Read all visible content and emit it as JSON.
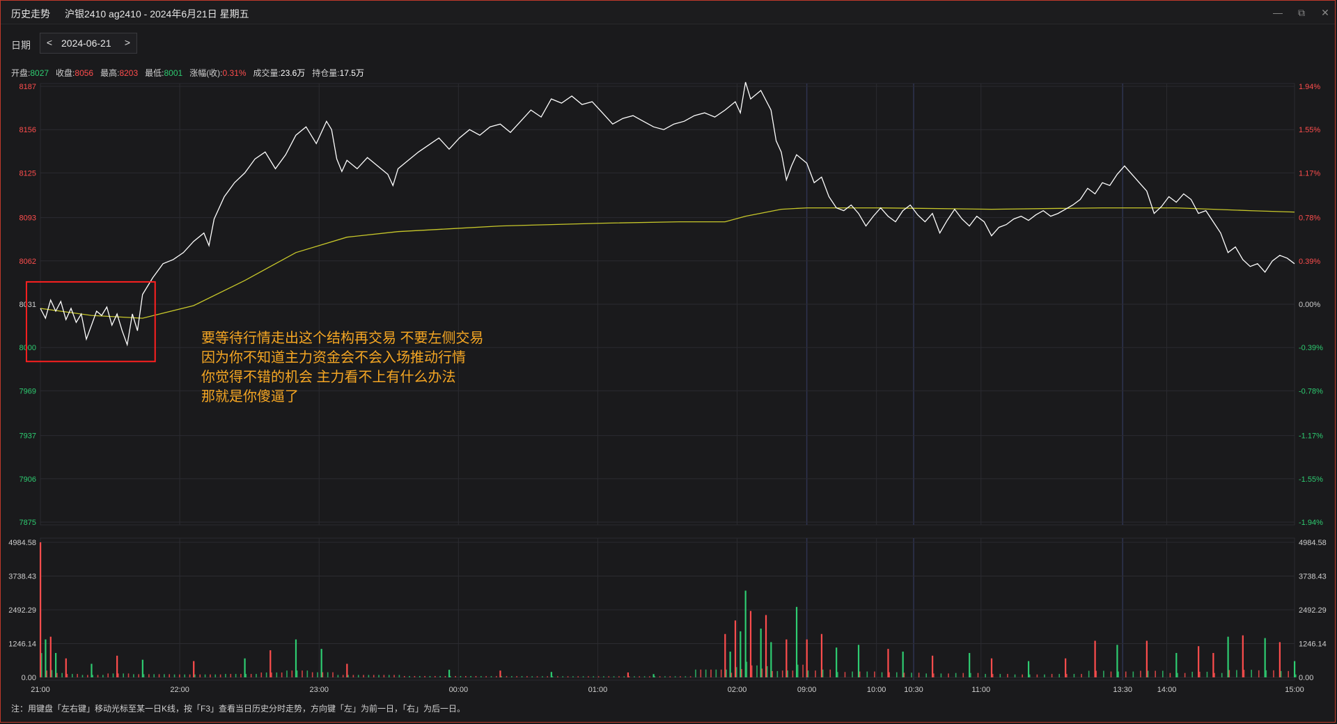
{
  "window": {
    "title": "历史走势",
    "subtitle": "沪银2410 ag2410 - 2024年6月21日 星期五",
    "controls": [
      "minimize-icon",
      "restore-icon",
      "close-icon"
    ]
  },
  "toolbar": {
    "date_label": "日期",
    "prev": "<",
    "date_value": "2024-06-21",
    "next": ">"
  },
  "info": {
    "open_label": "开盘:",
    "open": "8027",
    "close_label": "收盘:",
    "close": "8056",
    "high_label": "最高:",
    "high": "8203",
    "low_label": "最低:",
    "low": "8001",
    "change_label": "涨幅(收):",
    "change": "0.31%",
    "volume_label": "成交量:",
    "volume": "23.6万",
    "oi_label": "持仓量:",
    "oi": "17.5万"
  },
  "annotation": {
    "lines": [
      "要等待行情走出这个结构再交易 不要左侧交易",
      "因为你不知道主力资金会不会入场推动行情",
      "你觉得不错的机会 主力看不上有什么办法",
      "那就是你傻逼了"
    ],
    "color": "#f5a623",
    "box_color": "#ff2020"
  },
  "footer": "注：用键盘「左右键」移动光标至某一日K线，按「F3」查看当日历史分时走势，方向键「左」为前一日，「右」为后一日。",
  "colors": {
    "up": "#ff4d4d",
    "down": "#2ecc71",
    "price_line": "#ffffff",
    "avg_line": "#c8c82a",
    "grid": "#2b2b30",
    "session_line": "#2e3350"
  },
  "chart_data": [
    {
      "type": "line",
      "title": "",
      "y_left_ticks": [
        "8187",
        "8156",
        "8125",
        "8093",
        "8062",
        "8031",
        "8000",
        "7969",
        "7937",
        "7906",
        "7875"
      ],
      "y_right_ticks": [
        "1.94%",
        "1.55%",
        "1.17%",
        "0.78%",
        "0.39%",
        "0.00%",
        "-0.39%",
        "-0.78%",
        "-1.17%",
        "-1.55%",
        "-1.94%"
      ],
      "ylim": [
        7875,
        8187
      ],
      "pre_close": 8031,
      "x_ticks": [
        "21:00",
        "22:00",
        "23:00",
        "00:00",
        "01:00",
        "02:00",
        "09:00",
        "10:00",
        "10:30",
        "11:00",
        "13:30",
        "14:00",
        "15:00"
      ],
      "series": [
        {
          "key": "price",
          "points": [
            [
              0,
              8028
            ],
            [
              2,
              8021
            ],
            [
              4,
              8034
            ],
            [
              6,
              8026
            ],
            [
              8,
              8033
            ],
            [
              10,
              8020
            ],
            [
              12,
              8028
            ],
            [
              14,
              8018
            ],
            [
              16,
              8024
            ],
            [
              18,
              8006
            ],
            [
              20,
              8016
            ],
            [
              22,
              8026
            ],
            [
              24,
              8023
            ],
            [
              26,
              8029
            ],
            [
              28,
              8016
            ],
            [
              30,
              8024
            ],
            [
              32,
              8012
            ],
            [
              34,
              8002
            ],
            [
              36,
              8024
            ],
            [
              38,
              8012
            ],
            [
              40,
              8038
            ],
            [
              44,
              8050
            ],
            [
              48,
              8060
            ],
            [
              52,
              8063
            ],
            [
              56,
              8068
            ],
            [
              60,
              8076
            ],
            [
              64,
              8082
            ],
            [
              66,
              8073
            ],
            [
              68,
              8092
            ],
            [
              72,
              8108
            ],
            [
              76,
              8118
            ],
            [
              80,
              8125
            ],
            [
              84,
              8135
            ],
            [
              88,
              8140
            ],
            [
              92,
              8128
            ],
            [
              96,
              8138
            ],
            [
              100,
              8152
            ],
            [
              104,
              8158
            ],
            [
              108,
              8146
            ],
            [
              112,
              8162
            ],
            [
              114,
              8156
            ],
            [
              116,
              8135
            ],
            [
              118,
              8126
            ],
            [
              120,
              8134
            ],
            [
              124,
              8128
            ],
            [
              128,
              8136
            ],
            [
              132,
              8130
            ],
            [
              136,
              8124
            ],
            [
              138,
              8116
            ],
            [
              140,
              8128
            ],
            [
              144,
              8134
            ],
            [
              148,
              8140
            ],
            [
              152,
              8145
            ],
            [
              156,
              8150
            ],
            [
              160,
              8142
            ],
            [
              164,
              8150
            ],
            [
              168,
              8156
            ],
            [
              172,
              8152
            ],
            [
              176,
              8158
            ],
            [
              180,
              8160
            ],
            [
              184,
              8154
            ],
            [
              188,
              8162
            ],
            [
              192,
              8170
            ],
            [
              196,
              8165
            ],
            [
              200,
              8178
            ],
            [
              204,
              8175
            ],
            [
              208,
              8180
            ],
            [
              212,
              8174
            ],
            [
              216,
              8176
            ],
            [
              220,
              8168
            ],
            [
              224,
              8160
            ],
            [
              228,
              8164
            ],
            [
              232,
              8166
            ],
            [
              236,
              8162
            ],
            [
              240,
              8158
            ],
            [
              244,
              8156
            ],
            [
              248,
              8160
            ],
            [
              252,
              8162
            ],
            [
              256,
              8166
            ],
            [
              260,
              8168
            ],
            [
              264,
              8165
            ],
            [
              268,
              8170
            ],
            [
              272,
              8176
            ],
            [
              274,
              8168
            ],
            [
              276,
              8190
            ],
            [
              278,
              8178
            ],
            [
              282,
              8184
            ],
            [
              286,
              8170
            ],
            [
              288,
              8148
            ],
            [
              290,
              8140
            ],
            [
              292,
              8120
            ],
            [
              294,
              8130
            ],
            [
              296,
              8138
            ],
            [
              300,
              8132
            ],
            [
              302,
              8118
            ],
            [
              304,
              8122
            ],
            [
              306,
              8108
            ],
            [
              308,
              8100
            ],
            [
              310,
              8098
            ],
            [
              312,
              8102
            ],
            [
              314,
              8096
            ],
            [
              316,
              8087
            ],
            [
              318,
              8094
            ],
            [
              320,
              8100
            ],
            [
              322,
              8094
            ],
            [
              324,
              8090
            ],
            [
              326,
              8098
            ],
            [
              328,
              8102
            ],
            [
              330,
              8095
            ],
            [
              332,
              8090
            ],
            [
              334,
              8096
            ],
            [
              336,
              8082
            ],
            [
              338,
              8091
            ],
            [
              340,
              8099
            ],
            [
              342,
              8092
            ],
            [
              344,
              8087
            ],
            [
              346,
              8094
            ],
            [
              348,
              8090
            ],
            [
              350,
              8080
            ],
            [
              352,
              8086
            ],
            [
              354,
              8088
            ],
            [
              356,
              8092
            ],
            [
              358,
              8094
            ],
            [
              360,
              8091
            ],
            [
              362,
              8095
            ],
            [
              364,
              8098
            ],
            [
              366,
              8094
            ],
            [
              368,
              8096
            ],
            [
              370,
              8099
            ],
            [
              372,
              8102
            ],
            [
              374,
              8106
            ],
            [
              376,
              8114
            ],
            [
              378,
              8110
            ],
            [
              380,
              8118
            ],
            [
              382,
              8116
            ],
            [
              384,
              8124
            ],
            [
              386,
              8130
            ],
            [
              388,
              8124
            ],
            [
              390,
              8118
            ],
            [
              392,
              8112
            ],
            [
              394,
              8096
            ],
            [
              396,
              8101
            ],
            [
              398,
              8108
            ],
            [
              400,
              8104
            ],
            [
              402,
              8110
            ],
            [
              404,
              8106
            ],
            [
              406,
              8096
            ],
            [
              408,
              8098
            ],
            [
              410,
              8090
            ],
            [
              412,
              8082
            ],
            [
              414,
              8068
            ],
            [
              416,
              8072
            ],
            [
              418,
              8063
            ],
            [
              420,
              8058
            ],
            [
              422,
              8060
            ],
            [
              424,
              8054
            ],
            [
              426,
              8062
            ],
            [
              428,
              8066
            ],
            [
              430,
              8064
            ],
            [
              432,
              8060
            ]
          ]
        },
        {
          "key": "average",
          "points": [
            [
              0,
              8028
            ],
            [
              20,
              8023
            ],
            [
              40,
              8021
            ],
            [
              60,
              8030
            ],
            [
              80,
              8048
            ],
            [
              100,
              8068
            ],
            [
              120,
              8079
            ],
            [
              140,
              8083
            ],
            [
              160,
              8085
            ],
            [
              180,
              8087
            ],
            [
              200,
              8088
            ],
            [
              220,
              8089
            ],
            [
              250,
              8090
            ],
            [
              268,
              8090
            ],
            [
              276,
              8094
            ],
            [
              290,
              8099
            ],
            [
              300,
              8100
            ],
            [
              320,
              8100
            ],
            [
              350,
              8099
            ],
            [
              380,
              8100
            ],
            [
              400,
              8100
            ],
            [
              420,
              8098
            ],
            [
              432,
              8097
            ]
          ]
        }
      ]
    },
    {
      "type": "bar",
      "title": "",
      "y_ticks": [
        "4984.58",
        "3738.43",
        "2492.29",
        "1246.14",
        "0.00"
      ],
      "ylim": [
        0,
        4984.58
      ],
      "bars": [
        [
          0,
          4984.58,
          "up"
        ],
        [
          2,
          1400,
          "down"
        ],
        [
          4,
          1500,
          "up"
        ],
        [
          6,
          900,
          "down"
        ],
        [
          10,
          700,
          "up"
        ],
        [
          20,
          500,
          "down"
        ],
        [
          30,
          800,
          "up"
        ],
        [
          40,
          650,
          "down"
        ],
        [
          60,
          600,
          "up"
        ],
        [
          80,
          700,
          "down"
        ],
        [
          90,
          1000,
          "up"
        ],
        [
          100,
          1400,
          "down"
        ],
        [
          110,
          1050,
          "down"
        ],
        [
          120,
          500,
          "up"
        ],
        [
          160,
          280,
          "down"
        ],
        [
          180,
          250,
          "up"
        ],
        [
          200,
          200,
          "down"
        ],
        [
          230,
          180,
          "up"
        ],
        [
          240,
          120,
          "down"
        ],
        [
          268,
          1600,
          "up"
        ],
        [
          270,
          950,
          "down"
        ],
        [
          272,
          2100,
          "up"
        ],
        [
          274,
          1700,
          "down"
        ],
        [
          276,
          3200,
          "down"
        ],
        [
          278,
          2450,
          "up"
        ],
        [
          282,
          1800,
          "down"
        ],
        [
          284,
          2300,
          "up"
        ],
        [
          286,
          1300,
          "down"
        ],
        [
          292,
          1400,
          "up"
        ],
        [
          296,
          2600,
          "down"
        ],
        [
          300,
          1400,
          "up"
        ],
        [
          304,
          1600,
          "up"
        ],
        [
          308,
          1100,
          "down"
        ],
        [
          314,
          1200,
          "down"
        ],
        [
          322,
          1050,
          "up"
        ],
        [
          326,
          950,
          "down"
        ],
        [
          334,
          800,
          "up"
        ],
        [
          344,
          900,
          "down"
        ],
        [
          350,
          700,
          "up"
        ],
        [
          360,
          600,
          "down"
        ],
        [
          370,
          700,
          "up"
        ],
        [
          378,
          1350,
          "up"
        ],
        [
          384,
          1200,
          "down"
        ],
        [
          392,
          1350,
          "up"
        ],
        [
          400,
          900,
          "down"
        ],
        [
          406,
          1150,
          "up"
        ],
        [
          410,
          900,
          "up"
        ],
        [
          414,
          1500,
          "down"
        ],
        [
          418,
          1550,
          "up"
        ],
        [
          424,
          1450,
          "down"
        ],
        [
          428,
          1300,
          "up"
        ],
        [
          432,
          600,
          "down"
        ]
      ]
    }
  ]
}
